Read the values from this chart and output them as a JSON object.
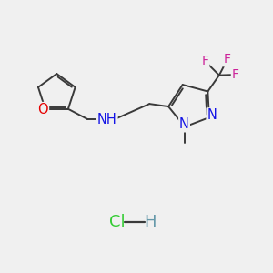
{
  "background_color": "#f0f0f0",
  "bond_color": "#3a3a3a",
  "atom_colors": {
    "O": "#e60000",
    "N": "#1414e6",
    "F": "#cc2299",
    "H": "#3a3a3a",
    "Cl": "#33cc33",
    "C": "#3a3a3a"
  },
  "figsize": [
    3.0,
    3.0
  ],
  "dpi": 100
}
